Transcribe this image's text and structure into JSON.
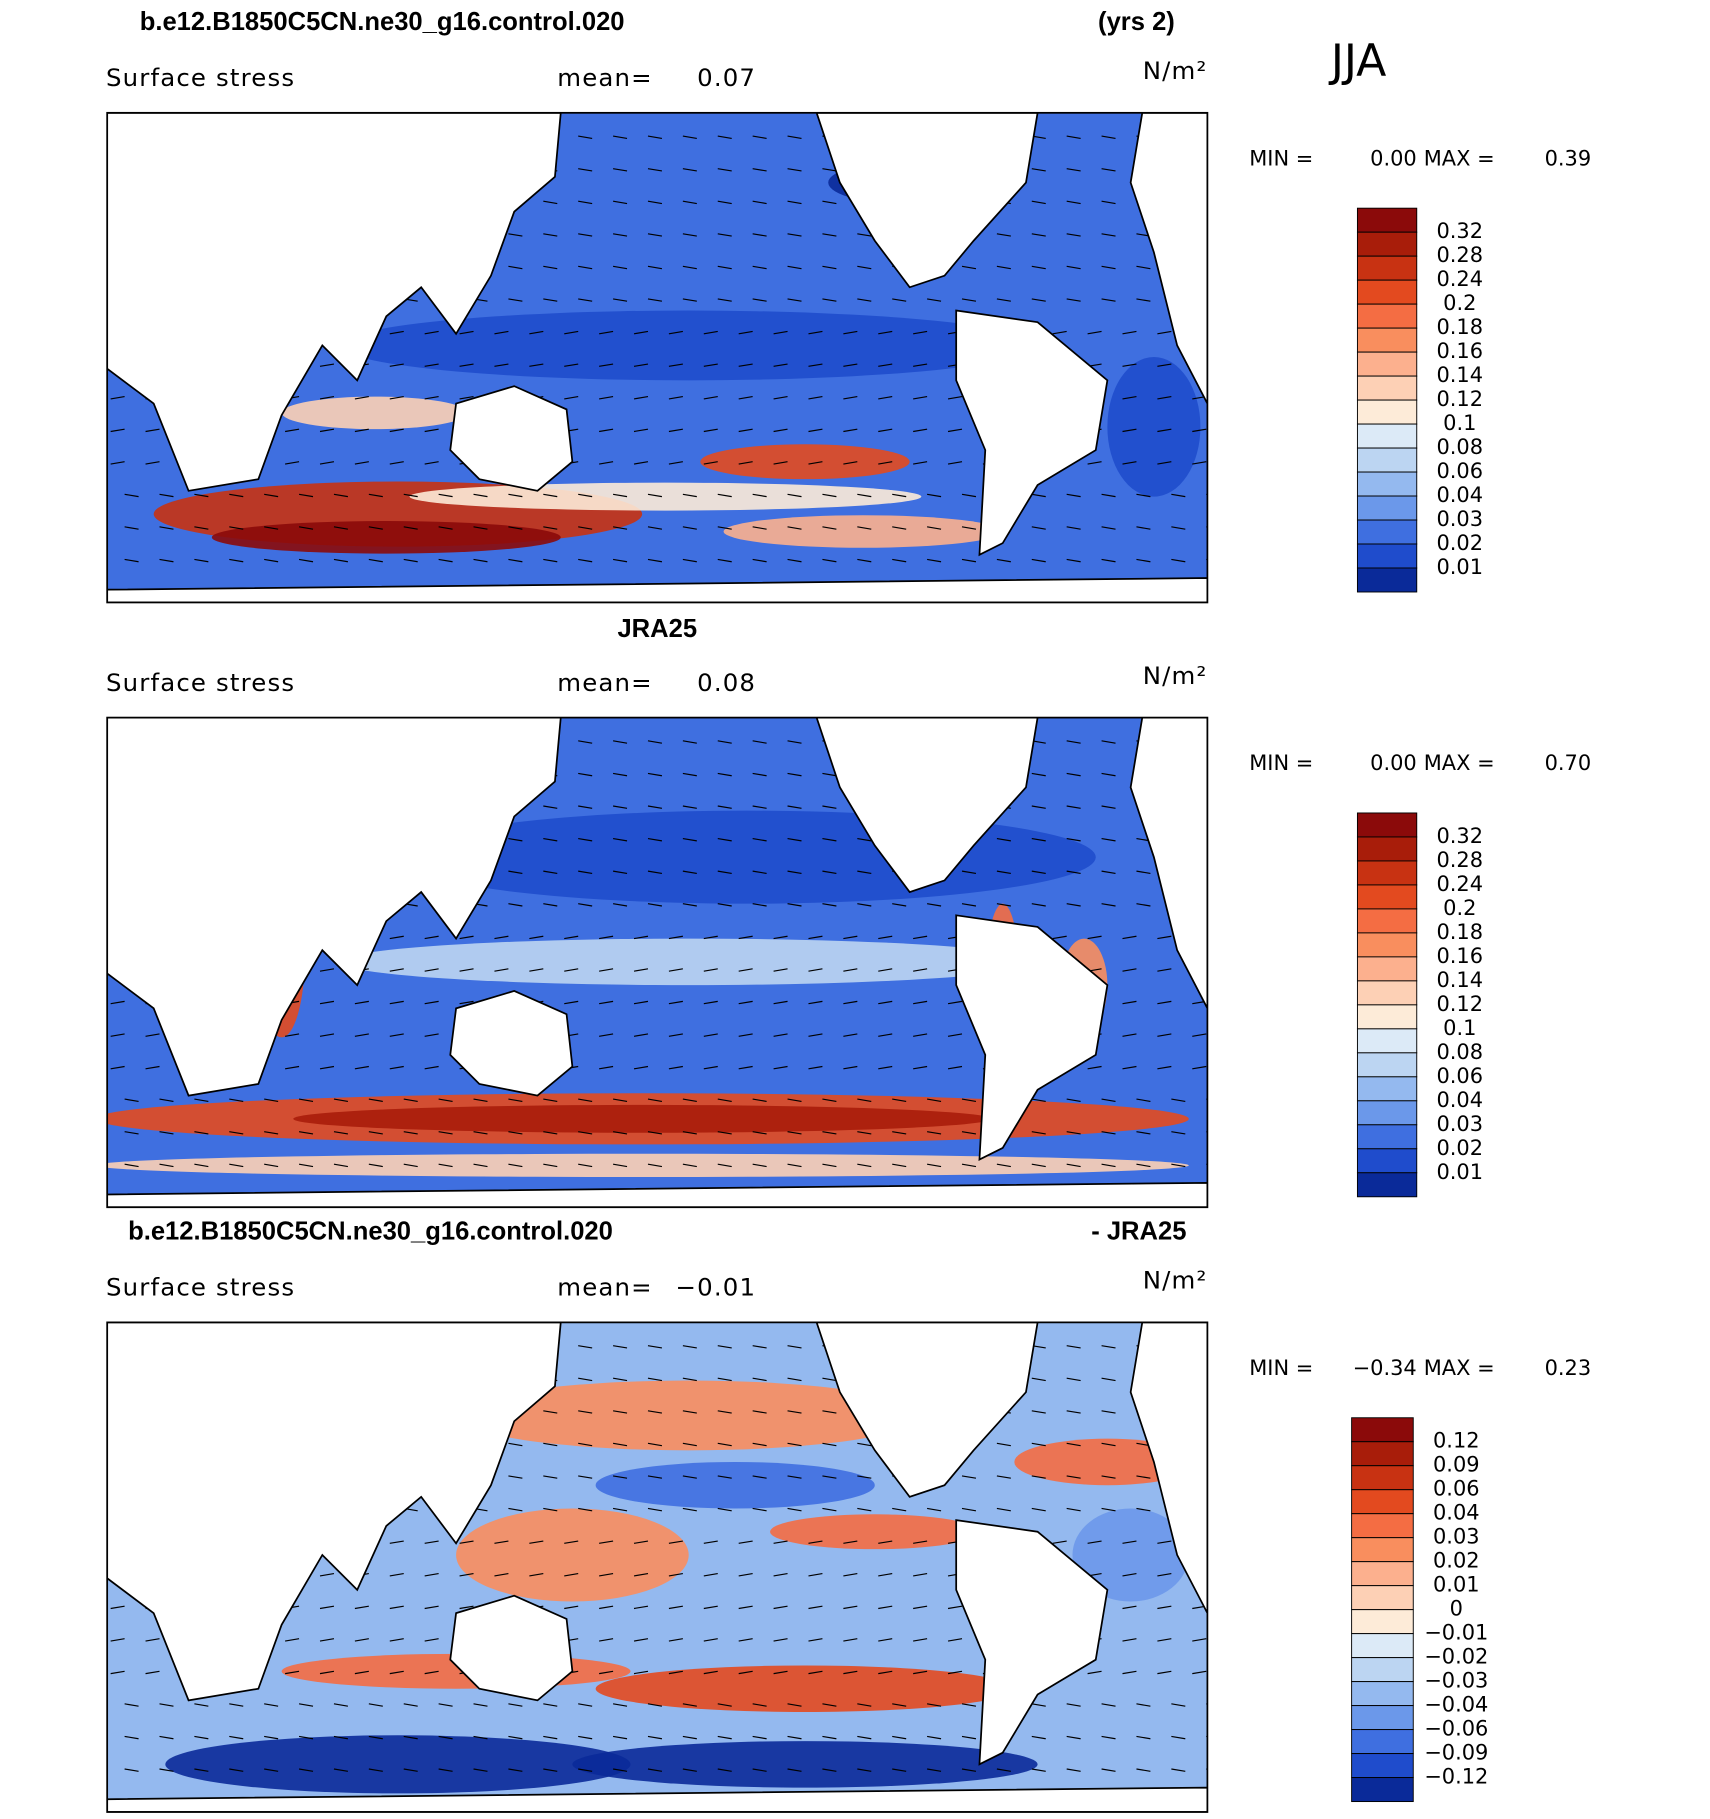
{
  "season": "JJA",
  "colorbar_colors": [
    "#8b0a0a",
    "#a81d0a",
    "#c83212",
    "#e34a1f",
    "#f46d43",
    "#f98e5e",
    "#fcb08e",
    "#fdd0b5",
    "#fdebd8",
    "#dceaf7",
    "#bcd5f2",
    "#94b9ef",
    "#6b98ea",
    "#3f6fe0",
    "#1f4ccc",
    "#0a2a99"
  ],
  "panels": [
    {
      "title_left": "b.e12.B1850C5CN.ne30_g16.control.020",
      "title_right": "(yrs 2)",
      "variable": "Surface stress",
      "mean_label": "mean=",
      "mean": "0.07",
      "units": "N/m²",
      "min_label": "MIN =",
      "min": "0.00",
      "max_label": "MAX =",
      "max": "0.39",
      "levels": [
        "0.32",
        "0.28",
        "0.24",
        "0.2",
        "0.18",
        "0.16",
        "0.14",
        "0.12",
        "0.1",
        "0.08",
        "0.06",
        "0.04",
        "0.03",
        "0.02",
        "0.01"
      ]
    },
    {
      "title": "JRA25",
      "variable": "Surface stress",
      "mean_label": "mean=",
      "mean": "0.08",
      "units": "N/m²",
      "min_label": "MIN =",
      "min": "0.00",
      "max_label": "MAX =",
      "max": "0.70",
      "levels": [
        "0.32",
        "0.28",
        "0.24",
        "0.2",
        "0.18",
        "0.16",
        "0.14",
        "0.12",
        "0.1",
        "0.08",
        "0.06",
        "0.04",
        "0.03",
        "0.02",
        "0.01"
      ]
    },
    {
      "title_left": "b.e12.B1850C5CN.ne30_g16.control.020",
      "title_right": "- JRA25",
      "variable": "Surface stress",
      "mean_label": "mean=",
      "mean": "−0.01",
      "units": "N/m²",
      "min_label": "MIN =",
      "min": "−0.34",
      "max_label": "MAX =",
      "max": "0.23",
      "levels": [
        "0.12",
        "0.09",
        "0.06",
        "0.04",
        "0.03",
        "0.02",
        "0.01",
        "0",
        "−0.01",
        "−0.02",
        "−0.03",
        "−0.04",
        "−0.06",
        "−0.09",
        "−0.12"
      ]
    }
  ]
}
